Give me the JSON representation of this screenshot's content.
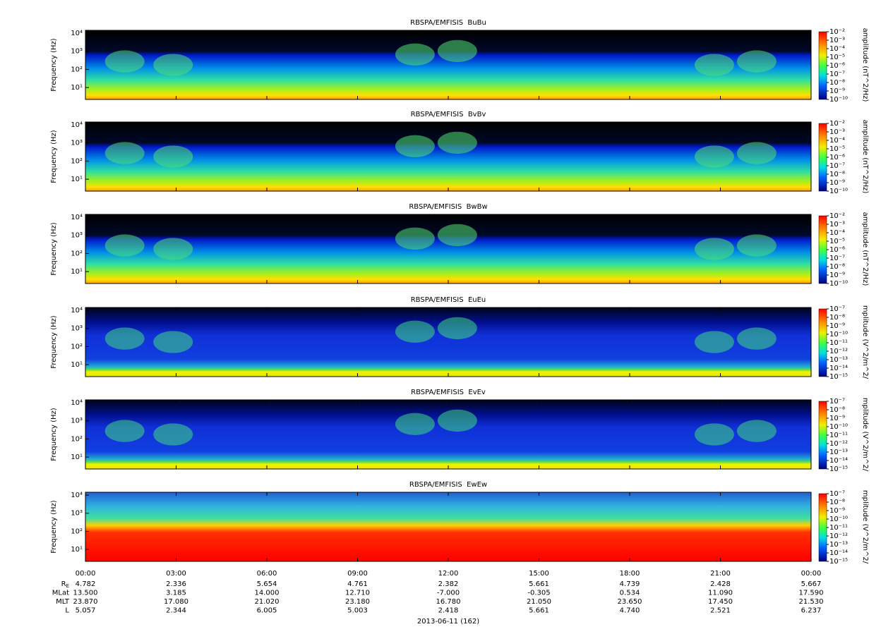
{
  "chart_data": [
    {
      "type": "spectrogram",
      "title": "RBSPA/EMFISIS  BuBu",
      "y_label": "Frequency (Hz)",
      "log_y": true,
      "ylim": [
        2.2,
        14400
      ],
      "yticks": [
        {
          "value": 10,
          "label": "10¹"
        },
        {
          "value": 100,
          "label": "10²"
        },
        {
          "value": 1000,
          "label": "10³"
        },
        {
          "value": 10000,
          "label": "10⁴"
        }
      ],
      "colorbar_label": "amplitude (nT^2/Hz)",
      "clim": [
        1e-10,
        0.01
      ],
      "cticks": [
        {
          "value": 0.01,
          "label": "10⁻²"
        },
        {
          "value": 0.001,
          "label": "10⁻³"
        },
        {
          "value": 0.0001,
          "label": "10⁻⁴"
        },
        {
          "value": 1e-05,
          "label": "10⁻⁵"
        },
        {
          "value": 1e-06,
          "label": "10⁻⁶"
        },
        {
          "value": 1e-07,
          "label": "10⁻⁷"
        },
        {
          "value": 1e-08,
          "label": "10⁻⁸"
        },
        {
          "value": 1e-09,
          "label": "10⁻⁹"
        },
        {
          "value": 1e-10,
          "label": "10⁻¹⁰"
        }
      ]
    },
    {
      "type": "spectrogram",
      "title": "RBSPA/EMFISIS  BvBv",
      "y_label": "Frequency (Hz)",
      "log_y": true,
      "ylim": [
        2.2,
        14400
      ],
      "yticks": [
        {
          "value": 10,
          "label": "10¹"
        },
        {
          "value": 100,
          "label": "10²"
        },
        {
          "value": 1000,
          "label": "10³"
        },
        {
          "value": 10000,
          "label": "10⁴"
        }
      ],
      "colorbar_label": "amplitude (nT^2/Hz)",
      "clim": [
        1e-10,
        0.01
      ],
      "cticks": [
        {
          "value": 0.01,
          "label": "10⁻²"
        },
        {
          "value": 0.001,
          "label": "10⁻³"
        },
        {
          "value": 0.0001,
          "label": "10⁻⁴"
        },
        {
          "value": 1e-05,
          "label": "10⁻⁵"
        },
        {
          "value": 1e-06,
          "label": "10⁻⁶"
        },
        {
          "value": 1e-07,
          "label": "10⁻⁷"
        },
        {
          "value": 1e-08,
          "label": "10⁻⁸"
        },
        {
          "value": 1e-09,
          "label": "10⁻⁹"
        },
        {
          "value": 1e-10,
          "label": "10⁻¹⁰"
        }
      ]
    },
    {
      "type": "spectrogram",
      "title": "RBSPA/EMFISIS  BwBw",
      "y_label": "Frequency (Hz)",
      "log_y": true,
      "ylim": [
        2.2,
        14400
      ],
      "yticks": [
        {
          "value": 10,
          "label": "10¹"
        },
        {
          "value": 100,
          "label": "10²"
        },
        {
          "value": 1000,
          "label": "10³"
        },
        {
          "value": 10000,
          "label": "10⁴"
        }
      ],
      "colorbar_label": "amplitude (nT^2/Hz)",
      "clim": [
        1e-10,
        0.01
      ],
      "cticks": [
        {
          "value": 0.01,
          "label": "10⁻²"
        },
        {
          "value": 0.001,
          "label": "10⁻³"
        },
        {
          "value": 0.0001,
          "label": "10⁻⁴"
        },
        {
          "value": 1e-05,
          "label": "10⁻⁵"
        },
        {
          "value": 1e-06,
          "label": "10⁻⁶"
        },
        {
          "value": 1e-07,
          "label": "10⁻⁷"
        },
        {
          "value": 1e-08,
          "label": "10⁻⁸"
        },
        {
          "value": 1e-09,
          "label": "10⁻⁹"
        },
        {
          "value": 1e-10,
          "label": "10⁻¹⁰"
        }
      ]
    },
    {
      "type": "spectrogram",
      "title": "RBSPA/EMFISIS  EuEu",
      "y_label": "Frequency (Hz)",
      "log_y": true,
      "ylim": [
        2.2,
        14400
      ],
      "yticks": [
        {
          "value": 10,
          "label": "10¹"
        },
        {
          "value": 100,
          "label": "10²"
        },
        {
          "value": 1000,
          "label": "10³"
        },
        {
          "value": 10000,
          "label": "10⁴"
        }
      ],
      "colorbar_label": "mplitude (V^2/m^2/",
      "clim": [
        1e-15,
        1e-07
      ],
      "cticks": [
        {
          "value": 1e-07,
          "label": "10⁻⁷"
        },
        {
          "value": 1e-08,
          "label": "10⁻⁸"
        },
        {
          "value": 1e-09,
          "label": "10⁻⁹"
        },
        {
          "value": 1e-10,
          "label": "10⁻¹⁰"
        },
        {
          "value": 1e-11,
          "label": "10⁻¹¹"
        },
        {
          "value": 1e-12,
          "label": "10⁻¹²"
        },
        {
          "value": 1e-13,
          "label": "10⁻¹³"
        },
        {
          "value": 1e-14,
          "label": "10⁻¹⁴"
        },
        {
          "value": 1e-15,
          "label": "10⁻¹⁵"
        }
      ]
    },
    {
      "type": "spectrogram",
      "title": "RBSPA/EMFISIS  EvEv",
      "y_label": "Frequency (Hz)",
      "log_y": true,
      "ylim": [
        2.2,
        14400
      ],
      "yticks": [
        {
          "value": 10,
          "label": "10¹"
        },
        {
          "value": 100,
          "label": "10²"
        },
        {
          "value": 1000,
          "label": "10³"
        },
        {
          "value": 10000,
          "label": "10⁴"
        }
      ],
      "colorbar_label": "mplitude (V^2/m^2/",
      "clim": [
        1e-15,
        1e-07
      ],
      "cticks": [
        {
          "value": 1e-07,
          "label": "10⁻⁷"
        },
        {
          "value": 1e-08,
          "label": "10⁻⁸"
        },
        {
          "value": 1e-09,
          "label": "10⁻⁹"
        },
        {
          "value": 1e-10,
          "label": "10⁻¹⁰"
        },
        {
          "value": 1e-11,
          "label": "10⁻¹¹"
        },
        {
          "value": 1e-12,
          "label": "10⁻¹²"
        },
        {
          "value": 1e-13,
          "label": "10⁻¹³"
        },
        {
          "value": 1e-14,
          "label": "10⁻¹⁴"
        },
        {
          "value": 1e-15,
          "label": "10⁻¹⁵"
        }
      ]
    },
    {
      "type": "spectrogram",
      "title": "RBSPA/EMFISIS  EwEw",
      "y_label": "Frequency (Hz)",
      "log_y": true,
      "ylim": [
        2.2,
        14400
      ],
      "yticks": [
        {
          "value": 10,
          "label": "10¹"
        },
        {
          "value": 100,
          "label": "10²"
        },
        {
          "value": 1000,
          "label": "10³"
        },
        {
          "value": 10000,
          "label": "10⁴"
        }
      ],
      "colorbar_label": "mplitude (V^2/m^2/",
      "clim": [
        1e-15,
        1e-07
      ],
      "cticks": [
        {
          "value": 1e-07,
          "label": "10⁻⁷"
        },
        {
          "value": 1e-08,
          "label": "10⁻⁸"
        },
        {
          "value": 1e-09,
          "label": "10⁻⁹"
        },
        {
          "value": 1e-10,
          "label": "10⁻¹⁰"
        },
        {
          "value": 1e-11,
          "label": "10⁻¹¹"
        },
        {
          "value": 1e-12,
          "label": "10⁻¹²"
        },
        {
          "value": 1e-13,
          "label": "10⁻¹³"
        },
        {
          "value": 1e-14,
          "label": "10⁻¹⁴"
        },
        {
          "value": 1e-15,
          "label": "10⁻¹⁵"
        }
      ]
    }
  ],
  "x_axis": {
    "xlim": [
      0,
      24
    ],
    "xticks": [
      {
        "value": 0,
        "label": "00:00"
      },
      {
        "value": 3,
        "label": "03:00"
      },
      {
        "value": 6,
        "label": "06:00"
      },
      {
        "value": 9,
        "label": "09:00"
      },
      {
        "value": 12,
        "label": "12:00"
      },
      {
        "value": 15,
        "label": "15:00"
      },
      {
        "value": 18,
        "label": "18:00"
      },
      {
        "value": 21,
        "label": "21:00"
      },
      {
        "value": 24,
        "label": "00:00"
      }
    ],
    "rows": [
      {
        "name": "R",
        "sub": "E",
        "values": [
          "4.782",
          "2.336",
          "5.654",
          "4.761",
          "2.382",
          "5.661",
          "4.739",
          "2.428",
          "5.667"
        ]
      },
      {
        "name": "MLat",
        "values": [
          "13.500",
          "3.185",
          "14.000",
          "12.710",
          "-7.000",
          "-0.305",
          "0.534",
          "11.090",
          "17.590"
        ]
      },
      {
        "name": "MLT",
        "values": [
          "23.870",
          "17.080",
          "21.020",
          "23.180",
          "16.780",
          "21.050",
          "23.650",
          "17.450",
          "21.530"
        ]
      },
      {
        "name": "L",
        "values": [
          "5.057",
          "2.344",
          "6.005",
          "5.003",
          "2.418",
          "5.661",
          "4.740",
          "2.521",
          "6.237"
        ]
      }
    ],
    "date_label": "2013-06-11 (162)"
  }
}
